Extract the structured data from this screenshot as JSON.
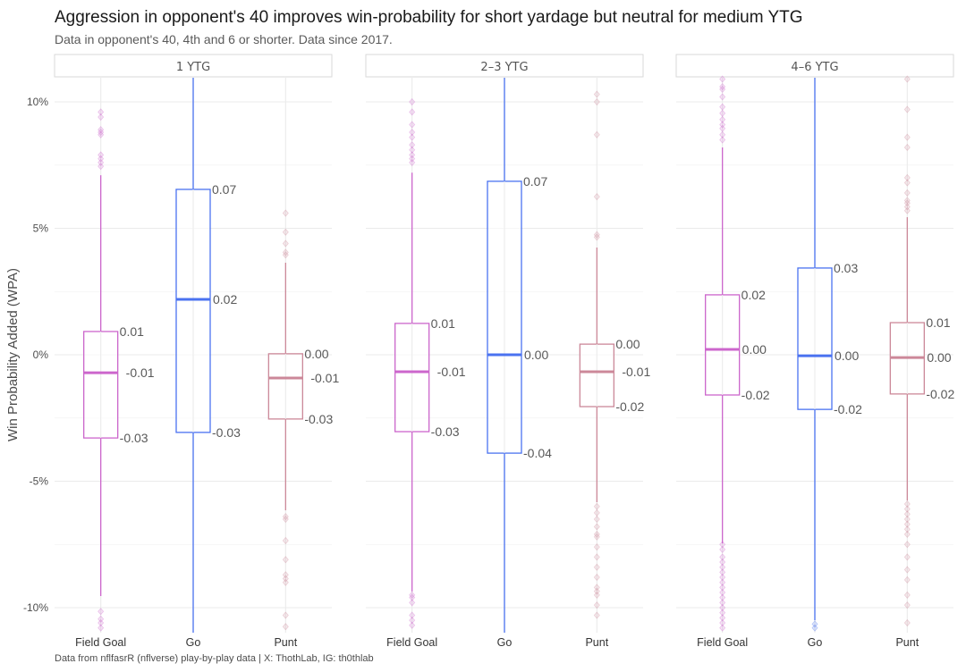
{
  "header": {
    "title": "Aggression in opponent's 40 improves win-probability for short yardage but neutral for medium YTG",
    "subtitle": "Data in opponent's 40, 4th and 6 or shorter. Data since 2017.",
    "caption": "Data from nflfasrR (nflverse) play-by-play data   |   X: ThothLab, IG: th0thlab"
  },
  "chart_data": {
    "type": "boxplot",
    "title": "Aggression in opponent's 40 improves win-probability for short yardage but neutral for medium YTG",
    "subtitle": "Data in opponent's 40, 4th and 6 or shorter. Data since 2017.",
    "xlabel": "",
    "ylabel": "Win Probability Added (WPA)",
    "ylim": [
      -0.11,
      0.11
    ],
    "yticks": [
      0.1,
      0.05,
      0.0,
      -0.05,
      -0.1
    ],
    "ytick_labels": [
      "10%",
      "5%",
      "0%",
      "-5%",
      "-10%"
    ],
    "grid": true,
    "legend": "none",
    "categories": [
      "Field Goal",
      "Go",
      "Punt"
    ],
    "colors": {
      "Field Goal": "#cc66cc",
      "Go": "#4a72f0",
      "Punt": "#cc8899"
    },
    "facets": [
      {
        "label": "1 YTG",
        "boxes": [
          {
            "category": "Field Goal",
            "q1": -0.0329,
            "median": -0.0071,
            "q3": 0.0092,
            "whisker_low": -0.0954,
            "whisker_high": 0.071,
            "labels": {
              "q3": "0.01",
              "median": "-0.01",
              "q1": "-0.03"
            },
            "outliers": [
              0.096,
              0.094,
              0.089,
              0.088,
              0.087,
              0.079,
              0.0775,
              0.076,
              0.0745,
              -0.1015,
              -0.1045,
              -0.106,
              -0.108
            ]
          },
          {
            "category": "Go",
            "q1": -0.0307,
            "median": 0.0219,
            "q3": 0.0654,
            "whisker_low": -0.11,
            "whisker_high": 0.11,
            "labels": {
              "q3": "0.07",
              "median": "0.02",
              "q1": "-0.03"
            },
            "outliers": []
          },
          {
            "category": "Punt",
            "q1": -0.0254,
            "median": -0.0092,
            "q3": 0.0004,
            "whisker_low": -0.0615,
            "whisker_high": 0.0364,
            "labels": {
              "q3": "0.00",
              "median": "-0.01",
              "q1": "-0.03"
            },
            "outliers": [
              0.056,
              0.0485,
              0.044,
              0.0405,
              0.0395,
              -0.065,
              -0.064,
              -0.0735,
              -0.081,
              -0.087,
              -0.0885,
              -0.09,
              -0.103,
              -0.1075
            ]
          }
        ]
      },
      {
        "label": "2–3 YTG",
        "boxes": [
          {
            "category": "Field Goal",
            "q1": -0.0304,
            "median": -0.0067,
            "q3": 0.0124,
            "whisker_low": -0.0936,
            "whisker_high": 0.072,
            "labels": {
              "q3": "0.01",
              "median": "-0.01",
              "q1": "-0.03"
            },
            "outliers": [
              0.1,
              0.096,
              0.091,
              0.088,
              0.086,
              0.083,
              0.081,
              0.079,
              0.0775,
              0.076,
              -0.095,
              -0.096,
              -0.098,
              -0.103,
              -0.105,
              -0.107
            ]
          },
          {
            "category": "Go",
            "q1": -0.0389,
            "median": 0.0,
            "q3": 0.0686,
            "whisker_low": -0.11,
            "whisker_high": 0.11,
            "labels": {
              "q3": "0.07",
              "median": "0.00",
              "q1": "-0.04"
            },
            "outliers": []
          },
          {
            "category": "Punt",
            "q1": -0.0205,
            "median": -0.0067,
            "q3": 0.0042,
            "whisker_low": -0.0583,
            "whisker_high": 0.0424,
            "labels": {
              "q3": "0.00",
              "median": "-0.01",
              "q1": "-0.02"
            },
            "outliers": [
              0.103,
              0.1,
              0.087,
              0.0625,
              0.0475,
              0.0465,
              -0.06,
              -0.0625,
              -0.065,
              -0.068,
              -0.071,
              -0.072,
              -0.076,
              -0.08,
              -0.084,
              -0.088,
              -0.092,
              -0.0935,
              -0.095,
              -0.099,
              -0.103
            ]
          }
        ]
      },
      {
        "label": "4–6 YTG",
        "boxes": [
          {
            "category": "Field Goal",
            "q1": -0.0159,
            "median": 0.0021,
            "q3": 0.0237,
            "whisker_low": -0.0746,
            "whisker_high": 0.082,
            "labels": {
              "q3": "0.02",
              "median": "0.00",
              "q1": "-0.02"
            },
            "outliers": [
              0.109,
              0.106,
              0.105,
              0.102,
              0.098,
              0.0955,
              0.093,
              0.091,
              0.0895,
              0.087,
              0.085,
              -0.075,
              -0.077,
              -0.08,
              -0.082,
              -0.084,
              -0.086,
              -0.088,
              -0.09,
              -0.092,
              -0.094,
              -0.096,
              -0.098,
              -0.1,
              -0.102,
              -0.104,
              -0.106,
              -0.108
            ]
          },
          {
            "category": "Go",
            "q1": -0.0216,
            "median": -0.0004,
            "q3": 0.0343,
            "whisker_low": -0.105,
            "whisker_high": 0.11,
            "labels": {
              "q3": "0.03",
              "median": "0.00",
              "q1": "-0.02"
            },
            "outliers": [
              -0.1065,
              -0.108
            ]
          },
          {
            "category": "Punt",
            "q1": -0.0155,
            "median": -0.0011,
            "q3": 0.0127,
            "whisker_low": -0.0576,
            "whisker_high": 0.0544,
            "labels": {
              "q3": "0.01",
              "median": "0.00",
              "q1": "-0.02"
            },
            "outliers": [
              0.109,
              0.097,
              0.086,
              0.082,
              0.07,
              0.068,
              0.064,
              0.061,
              0.06,
              0.0585,
              0.057,
              -0.059,
              -0.061,
              -0.063,
              -0.065,
              -0.067,
              -0.069,
              -0.071,
              -0.075,
              -0.08,
              -0.085,
              -0.089,
              -0.095,
              -0.099,
              -0.106
            ]
          }
        ]
      }
    ]
  }
}
